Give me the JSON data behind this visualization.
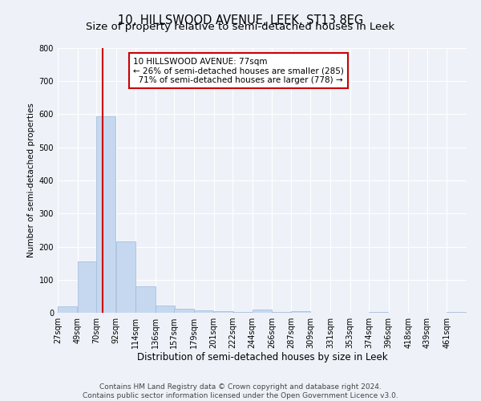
{
  "title1": "10, HILLSWOOD AVENUE, LEEK, ST13 8EG",
  "title2": "Size of property relative to semi-detached houses in Leek",
  "xlabel": "Distribution of semi-detached houses by size in Leek",
  "ylabel": "Number of semi-detached properties",
  "bin_labels": [
    "27sqm",
    "49sqm",
    "70sqm",
    "92sqm",
    "114sqm",
    "136sqm",
    "157sqm",
    "179sqm",
    "201sqm",
    "222sqm",
    "244sqm",
    "266sqm",
    "287sqm",
    "309sqm",
    "331sqm",
    "353sqm",
    "374sqm",
    "396sqm",
    "418sqm",
    "439sqm",
    "461sqm"
  ],
  "bin_edges": [
    27,
    49,
    70,
    92,
    114,
    136,
    157,
    179,
    201,
    222,
    244,
    266,
    287,
    309,
    331,
    353,
    374,
    396,
    418,
    439,
    461
  ],
  "bar_heights": [
    20,
    155,
    593,
    215,
    80,
    22,
    12,
    8,
    5,
    3,
    10,
    2,
    5,
    0,
    0,
    0,
    3,
    0,
    0,
    0,
    3
  ],
  "bar_color": "#c5d8f0",
  "bar_edge_color": "#a0b8d8",
  "property_value": 77,
  "vline_color": "#cc0000",
  "annotation_line1": "10 HILLSWOOD AVENUE: 77sqm",
  "annotation_line2": "← 26% of semi-detached houses are smaller (285)",
  "annotation_line3": "  71% of semi-detached houses are larger (778) →",
  "annotation_box_color": "#ffffff",
  "annotation_box_edge": "#cc0000",
  "ylim": [
    0,
    800
  ],
  "yticks": [
    0,
    100,
    200,
    300,
    400,
    500,
    600,
    700,
    800
  ],
  "bg_color": "#eef2f8",
  "footer_text": "Contains HM Land Registry data © Crown copyright and database right 2024.\nContains public sector information licensed under the Open Government Licence v3.0.",
  "title1_fontsize": 10.5,
  "title2_fontsize": 9.5,
  "xlabel_fontsize": 8.5,
  "ylabel_fontsize": 7.5,
  "tick_fontsize": 7,
  "footer_fontsize": 6.5,
  "annot_fontsize": 7.5
}
